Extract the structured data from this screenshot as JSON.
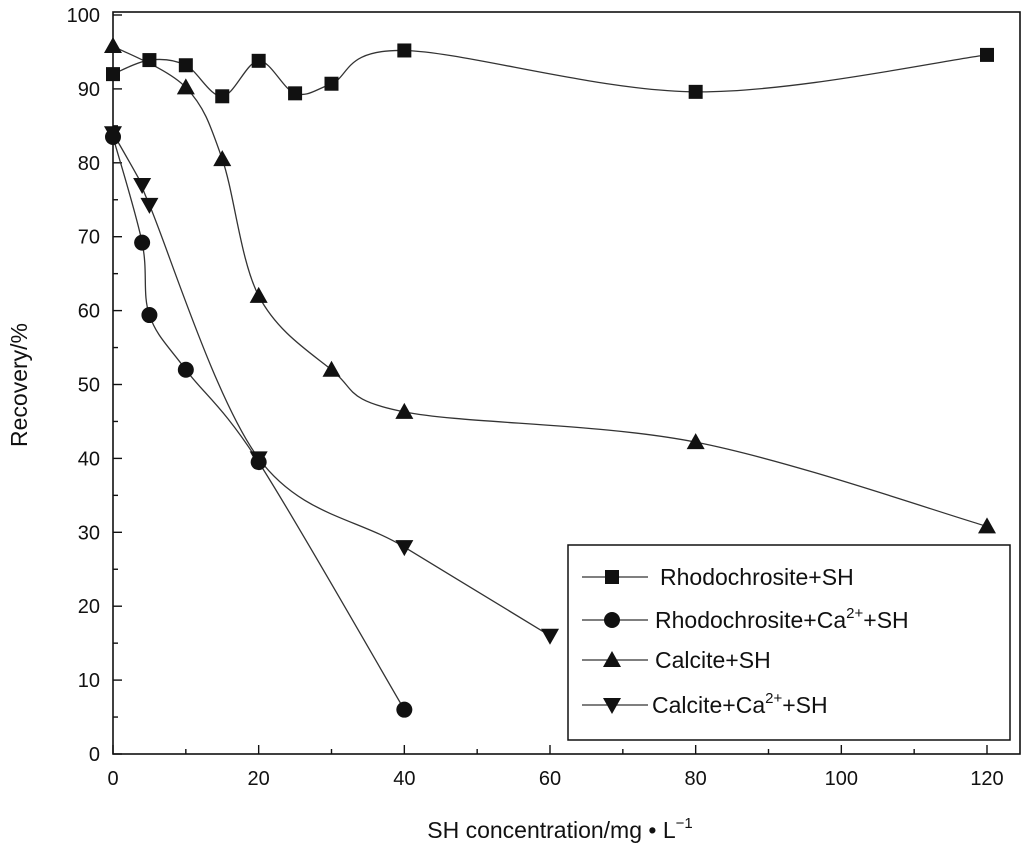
{
  "chart_data": {
    "type": "line",
    "title": "",
    "xlabel": "SH concentration/mg • L",
    "xlabel_sup": "−1",
    "ylabel": "Recovery/%",
    "xlim": [
      0,
      125
    ],
    "ylim": [
      0,
      100
    ],
    "xticks": [
      0,
      20,
      40,
      60,
      80,
      100,
      120
    ],
    "yticks": [
      0,
      10,
      20,
      30,
      40,
      50,
      60,
      70,
      80,
      90,
      100
    ],
    "grid": false,
    "legend_position": "bottom-right",
    "series": [
      {
        "name": "Rhodochrosite+SH",
        "label_main": "Rhodochrosite+SH",
        "label_sup": "",
        "label_tail": "",
        "marker": "square",
        "x": [
          0,
          5,
          10,
          15,
          20,
          25,
          30,
          40,
          80,
          120
        ],
        "y": [
          92.0,
          93.9,
          93.2,
          89.0,
          93.8,
          89.4,
          90.7,
          95.2,
          89.6,
          94.6
        ]
      },
      {
        "name": "Rhodochrosite+Ca2++SH",
        "label_main": "Rhodochrosite+Ca",
        "label_sup": "2+",
        "label_tail": "+SH",
        "marker": "circle",
        "x": [
          0,
          4,
          5,
          10,
          20,
          40
        ],
        "y": [
          83.5,
          69.2,
          59.4,
          52.0,
          39.5,
          6.0
        ]
      },
      {
        "name": "Calcite+SH",
        "label_main": "Calcite+SH",
        "label_sup": "",
        "label_tail": "",
        "marker": "triangle-up",
        "x": [
          0,
          10,
          15,
          20,
          30,
          40,
          80,
          120
        ],
        "y": [
          95.8,
          90.2,
          80.5,
          62.0,
          52.0,
          46.3,
          42.2,
          30.8
        ]
      },
      {
        "name": "Calcite+Ca2++SH",
        "label_main": "Calcite+Ca",
        "label_sup": "2+",
        "label_tail": "+SH",
        "marker": "triangle-down",
        "x": [
          0,
          4,
          5,
          20,
          40,
          60
        ],
        "y": [
          84.0,
          77.0,
          74.3,
          40.0,
          28.0,
          16.0
        ]
      }
    ]
  }
}
